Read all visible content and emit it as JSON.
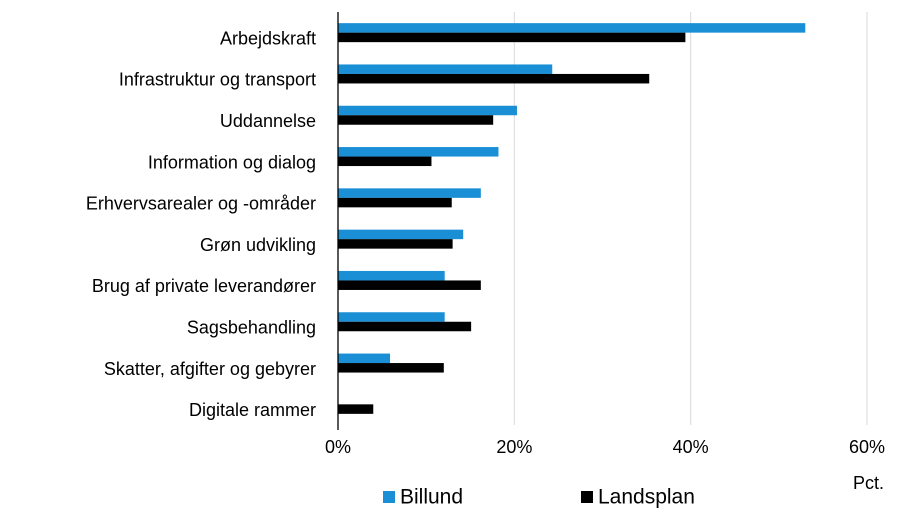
{
  "chart_data": {
    "type": "bar",
    "orientation": "horizontal",
    "categories": [
      "Arbejdskraft",
      "Infrastruktur og transport",
      "Uddannelse",
      "Information og dialog",
      "Erhvervsarealer og -områder",
      "Grøn udvikling",
      "Brug af private leverandører",
      "Sagsbehandling",
      "Skatter, afgifter og gebyrer",
      "Digitale rammer"
    ],
    "series": [
      {
        "name": "Billund",
        "color": "#1b8fd6",
        "values": [
          53.0,
          24.3,
          20.3,
          18.2,
          16.2,
          14.2,
          12.1,
          12.1,
          5.9,
          0
        ]
      },
      {
        "name": "Landsplan",
        "color": "#000000",
        "values": [
          39.4,
          35.3,
          17.6,
          10.6,
          12.9,
          13.0,
          16.2,
          15.1,
          12.0,
          4.0
        ]
      }
    ],
    "xlim": [
      0,
      60
    ],
    "xticks": [
      {
        "value": 0,
        "label": "0%"
      },
      {
        "value": 20,
        "label": "20%"
      },
      {
        "value": 40,
        "label": "40%"
      },
      {
        "value": 60,
        "label": "60%"
      }
    ],
    "xlabel": "Pct.",
    "grid": true,
    "legend": "bottom"
  }
}
